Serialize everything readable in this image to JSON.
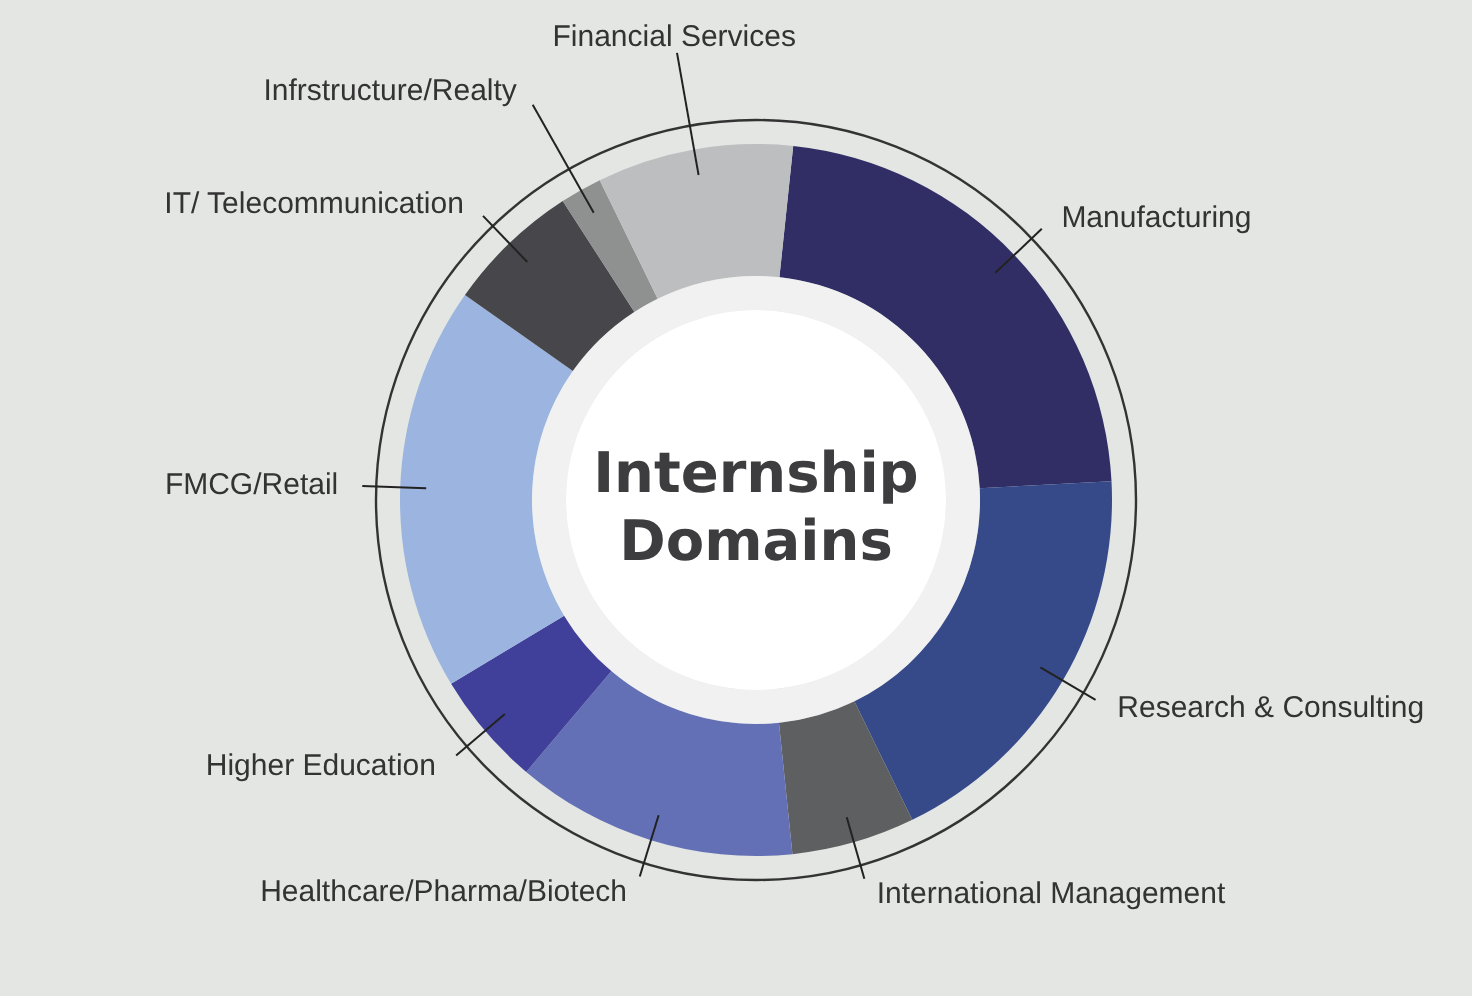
{
  "chart_data": {
    "type": "donut",
    "title": "Internship Domains",
    "categories": [
      "Manufacturing",
      "Research & Consulting",
      "International Management",
      "Healthcare/Pharma/Biotech",
      "Higher Education",
      "FMCG/Retail",
      "IT/ Telecommunication",
      "Infrstructure/Realty",
      "Financial Services"
    ],
    "values": [
      22.5,
      18.6,
      5.6,
      12.8,
      5.2,
      18.4,
      6.1,
      1.9,
      8.9
    ],
    "colors": [
      "#312e66",
      "#364a8a",
      "#5e5f60",
      "#6470b5",
      "#40409a",
      "#9bb5e0",
      "#47474b",
      "#8f9191",
      "#bcbec0"
    ]
  }
}
